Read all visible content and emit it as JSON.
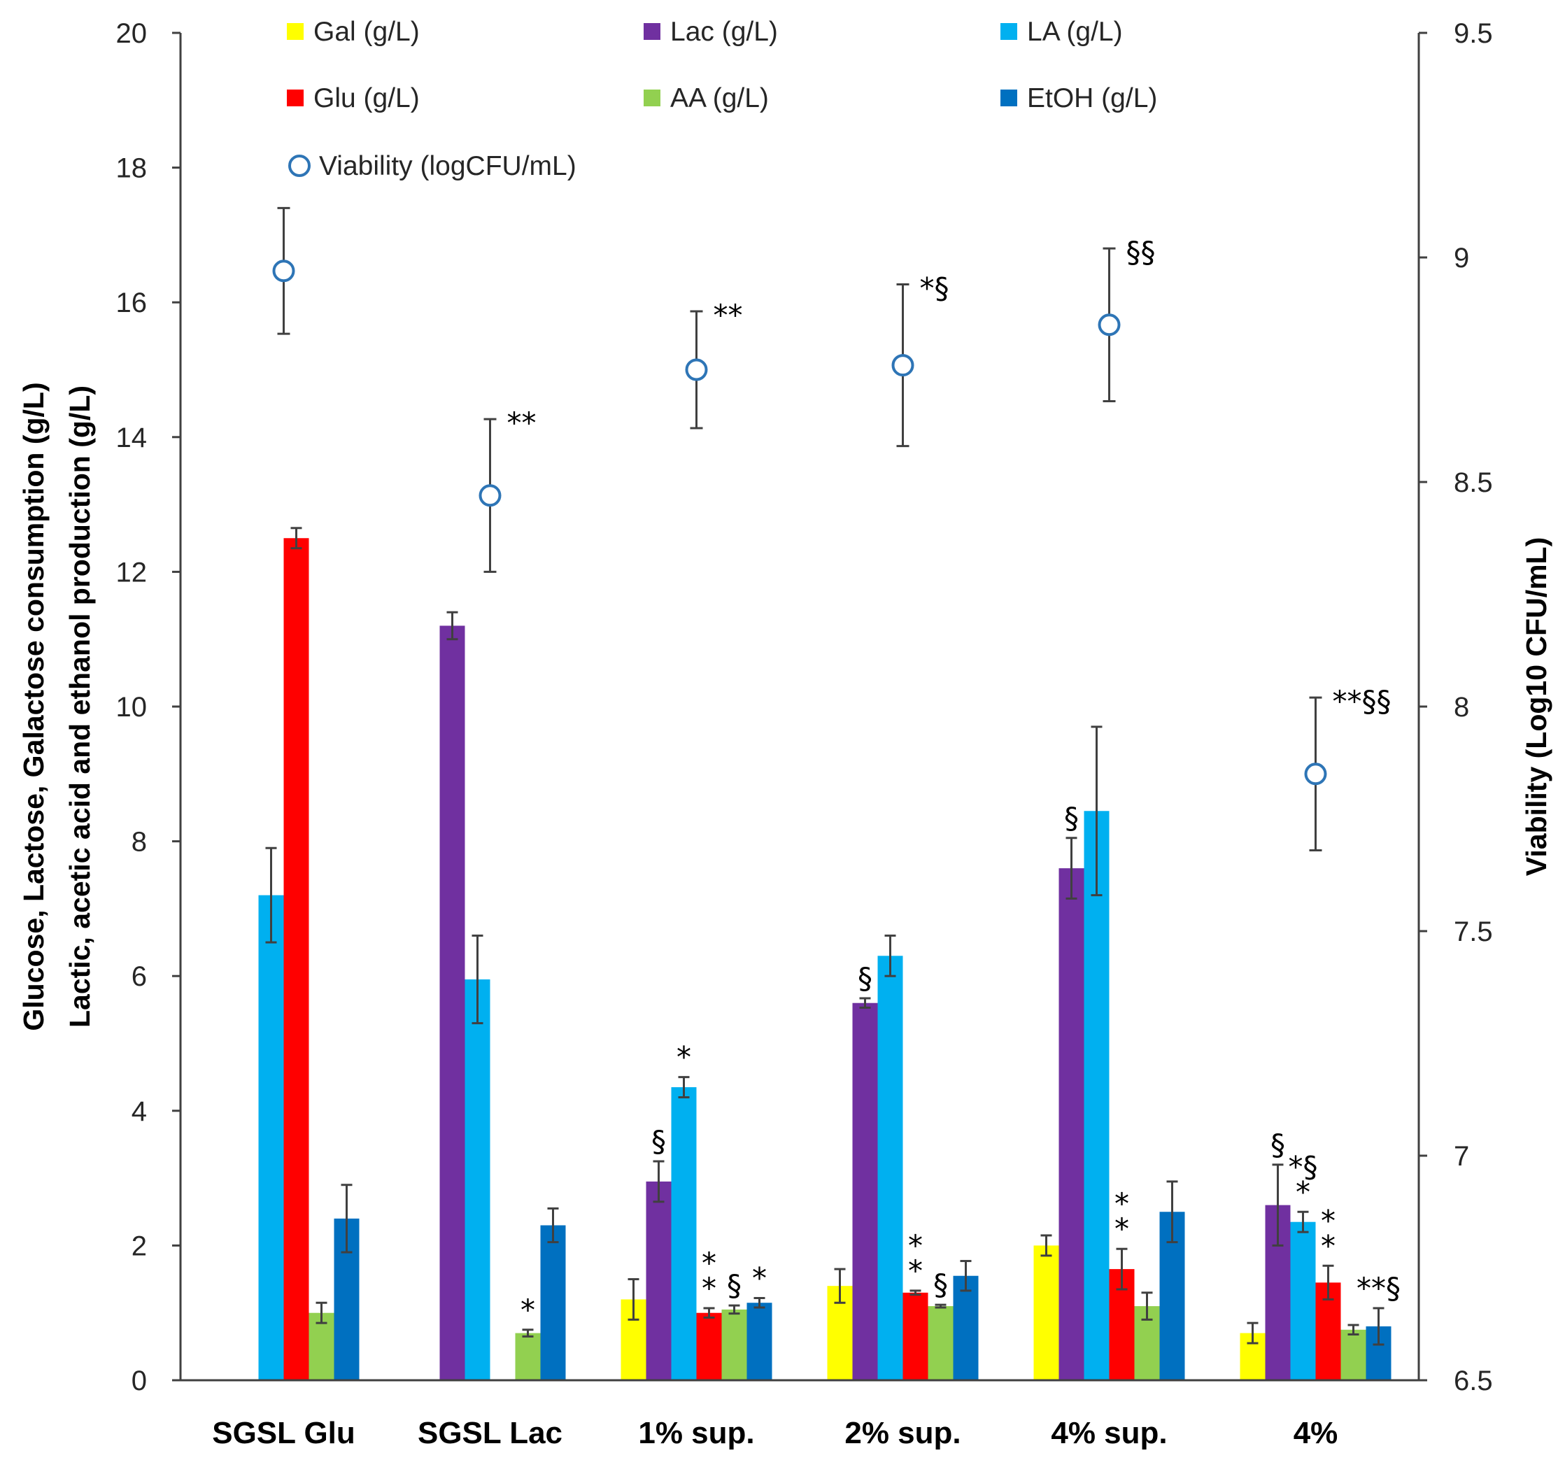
{
  "chart_data": {
    "type": "bar",
    "categories": [
      "SGSL Glu",
      "SGSL Lac",
      "1% sup.",
      "2% sup.",
      "4% sup.",
      "4%"
    ],
    "ylabel_lines": [
      "Glucose, Lactose, Galactose consumption (g/L)",
      "Lactic, acetic acid and ethanol production (g/L)"
    ],
    "y2label": "Viability (Log10 CFU/mL)",
    "ylim": [
      0,
      20
    ],
    "y_ticks": [
      "0",
      "2",
      "4",
      "6",
      "8",
      "10",
      "12",
      "14",
      "16",
      "18",
      "20"
    ],
    "y2lim": [
      6.5,
      9.5
    ],
    "y2_ticks": [
      "6.5",
      "7",
      "7.5",
      "8",
      "8.5",
      "9",
      "9.5"
    ],
    "grid": false,
    "legend_position": "top",
    "series": [
      {
        "name": "Gal (g/L)",
        "color": "#FFFF00",
        "values": [
          null,
          null,
          1.2,
          1.4,
          2.0,
          0.7
        ],
        "errors": [
          null,
          null,
          0.3,
          0.25,
          0.15,
          0.15
        ]
      },
      {
        "name": "Lac (g/L)",
        "color": "#7030A0",
        "values": [
          null,
          11.2,
          2.95,
          5.6,
          7.6,
          2.6
        ],
        "errors": [
          null,
          0.2,
          0.3,
          0.07,
          0.45,
          0.6
        ]
      },
      {
        "name": "LA (g/L)",
        "color": "#00B0F0",
        "values": [
          7.2,
          5.95,
          4.35,
          6.3,
          8.45,
          2.35
        ],
        "errors": [
          0.7,
          0.65,
          0.15,
          0.3,
          1.25,
          0.15
        ]
      },
      {
        "name": "Glu (g/L)",
        "color": "#FF0000",
        "values": [
          12.5,
          null,
          1.0,
          1.3,
          1.65,
          1.45
        ],
        "errors": [
          0.15,
          null,
          0.07,
          0.03,
          0.3,
          0.25
        ]
      },
      {
        "name": "AA (g/L)",
        "color": "#92D050",
        "values": [
          1.0,
          0.7,
          1.05,
          1.1,
          1.1,
          0.75
        ],
        "errors": [
          0.15,
          0.05,
          0.06,
          0.02,
          0.2,
          0.07
        ]
      },
      {
        "name": "EtOH (g/L)",
        "color": "#0070C0",
        "values": [
          2.4,
          2.3,
          1.15,
          1.55,
          2.5,
          0.8
        ],
        "errors": [
          0.5,
          0.25,
          0.07,
          0.22,
          0.45,
          0.27
        ]
      }
    ],
    "viability": {
      "name": "Viability (logCFU/mL)",
      "color": "#2E75B6",
      "axis": "right",
      "values": [
        8.97,
        8.47,
        8.75,
        8.76,
        8.85,
        7.85
      ],
      "errors": [
        0.14,
        0.17,
        0.13,
        0.18,
        0.17,
        0.17
      ]
    },
    "annotations": [
      {
        "category": 1,
        "target": "viability",
        "text": "**"
      },
      {
        "category": 2,
        "target": "viability",
        "text": "**"
      },
      {
        "category": 3,
        "target": "viability",
        "text": "*§"
      },
      {
        "category": 4,
        "target": "viability",
        "text": "§§"
      },
      {
        "category": 5,
        "target": "viability",
        "text": "**§§"
      },
      {
        "category": 1,
        "series": 4,
        "text": "*"
      },
      {
        "category": 2,
        "series": 1,
        "text": "§"
      },
      {
        "category": 2,
        "series": 2,
        "text": "*"
      },
      {
        "category": 2,
        "series": 3,
        "text": "*\n*"
      },
      {
        "category": 2,
        "series": 4,
        "text": "§"
      },
      {
        "category": 2,
        "series": 5,
        "text": "*"
      },
      {
        "category": 3,
        "series": 1,
        "text": "§"
      },
      {
        "category": 3,
        "series": 3,
        "text": "*\n*"
      },
      {
        "category": 3,
        "series": 4,
        "text": "§"
      },
      {
        "category": 4,
        "series": 1,
        "text": "§"
      },
      {
        "category": 4,
        "series": 3,
        "text": "*\n*"
      },
      {
        "category": 5,
        "series": 1,
        "text": "§"
      },
      {
        "category": 5,
        "series": 2,
        "text": "*§\n*"
      },
      {
        "category": 5,
        "series": 3,
        "text": "*\n*"
      },
      {
        "category": 5,
        "series": 5,
        "text": "**§"
      }
    ]
  }
}
